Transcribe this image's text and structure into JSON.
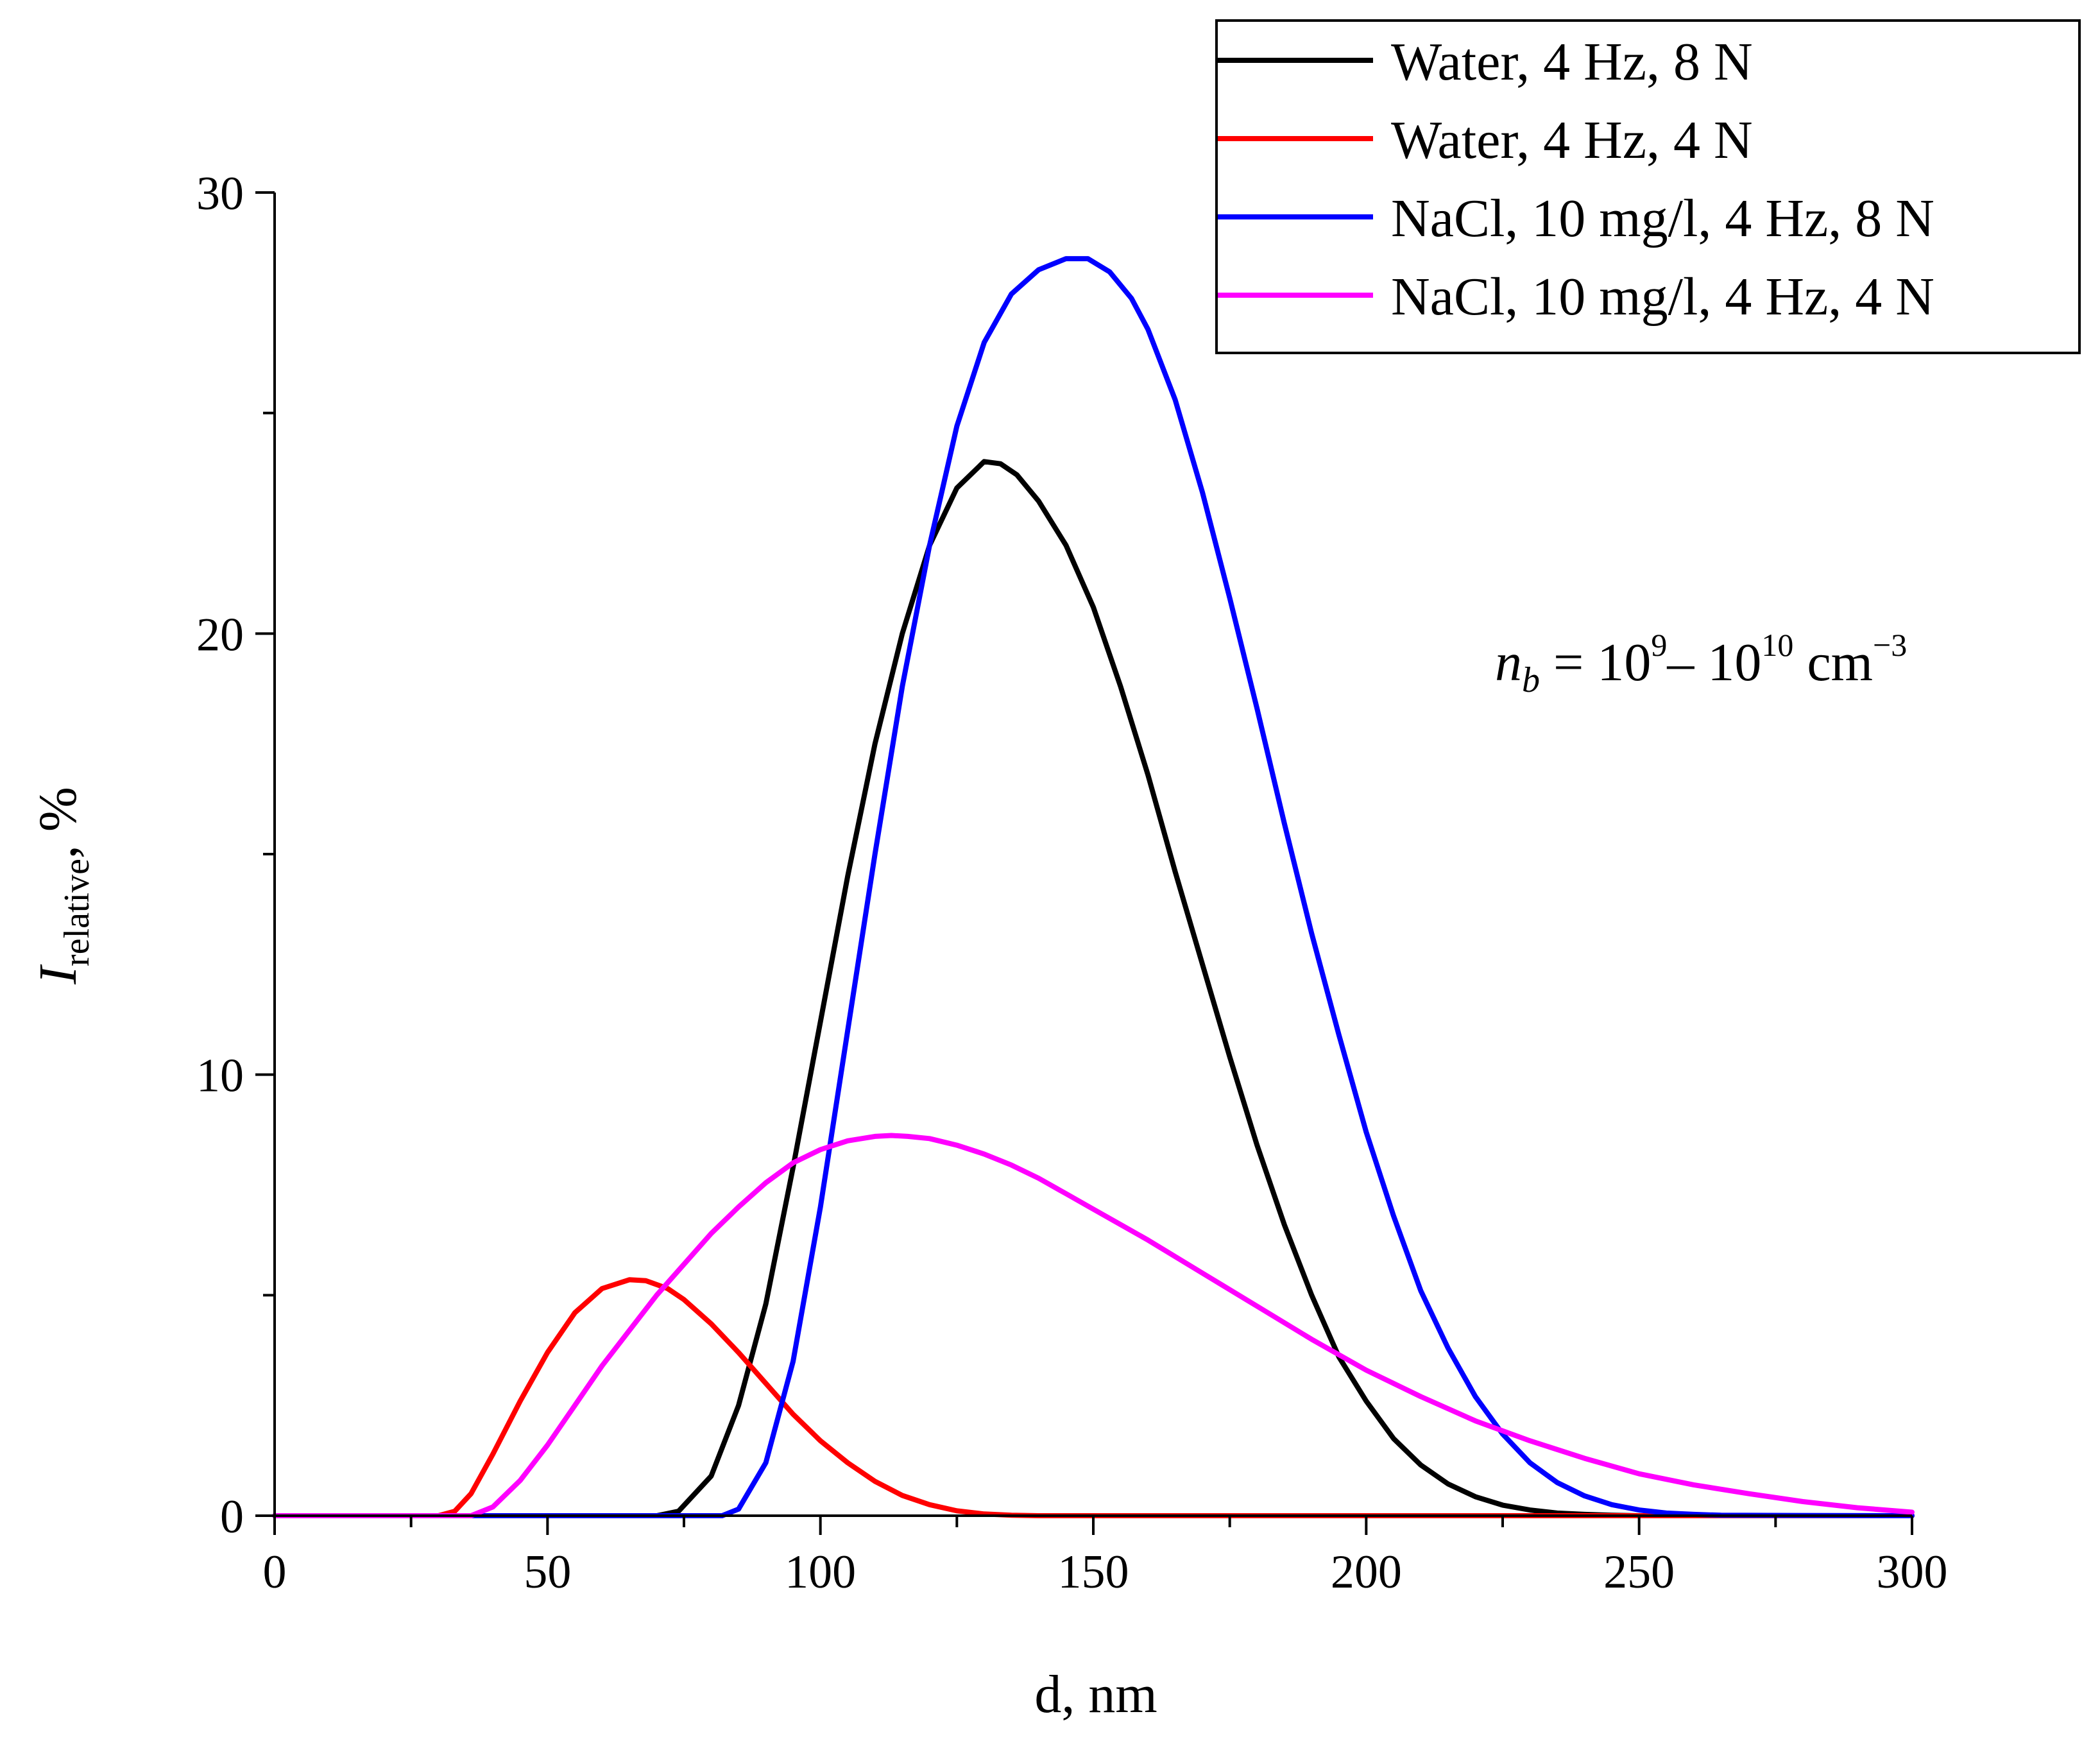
{
  "chart_data": {
    "type": "line",
    "title": "",
    "xlabel": "d, nm",
    "ylabel": {
      "main": "I",
      "sub": "relative",
      "suffix": ", %"
    },
    "xlim": [
      0,
      300
    ],
    "ylim": [
      0,
      30
    ],
    "xticks": [
      0,
      50,
      100,
      150,
      200,
      250,
      300
    ],
    "yticks": [
      0,
      10,
      20,
      30
    ],
    "x_minor_step": 25,
    "y_minor_step": 5,
    "grid": false,
    "legend_position": "top-right",
    "annotation": {
      "var": "n",
      "sub": "b",
      "eq": " = 10",
      "exp1": "9",
      "dash": "– 10",
      "exp2": "10",
      "unit": " cm",
      "exp3": "−3"
    },
    "series": [
      {
        "name": "Water, 4 Hz, 8 N",
        "color": "#000000",
        "x": [
          0,
          70,
          74,
          80,
          85,
          90,
          95,
          100,
          105,
          110,
          115,
          120,
          125,
          130,
          133,
          136,
          140,
          145,
          150,
          155,
          160,
          165,
          170,
          175,
          180,
          185,
          190,
          195,
          200,
          205,
          210,
          215,
          220,
          225,
          230,
          235,
          240,
          245,
          250,
          300
        ],
        "y": [
          0,
          0,
          0.1,
          0.9,
          2.5,
          4.8,
          7.9,
          11.2,
          14.5,
          17.5,
          20.0,
          22.0,
          23.3,
          23.9,
          23.85,
          23.6,
          23.0,
          22.0,
          20.6,
          18.8,
          16.8,
          14.6,
          12.5,
          10.4,
          8.4,
          6.6,
          5.0,
          3.6,
          2.6,
          1.75,
          1.15,
          0.72,
          0.43,
          0.24,
          0.13,
          0.06,
          0.03,
          0.01,
          0,
          0
        ]
      },
      {
        "name": "Water, 4 Hz, 4 N",
        "color": "#ff0000",
        "x": [
          0,
          30,
          33,
          36,
          40,
          45,
          50,
          55,
          60,
          65,
          68,
          72,
          75,
          80,
          85,
          90,
          95,
          100,
          105,
          110,
          115,
          120,
          125,
          130,
          135,
          140,
          300
        ],
        "y": [
          0,
          0,
          0.1,
          0.5,
          1.4,
          2.6,
          3.7,
          4.6,
          5.15,
          5.35,
          5.33,
          5.15,
          4.9,
          4.35,
          3.7,
          3.0,
          2.3,
          1.7,
          1.2,
          0.78,
          0.46,
          0.25,
          0.11,
          0.04,
          0.01,
          0,
          0
        ]
      },
      {
        "name": "NaCl, 10 mg/l, 4 Hz, 8 N",
        "color": "#0000ff",
        "x": [
          0,
          82,
          85,
          90,
          95,
          100,
          105,
          110,
          115,
          120,
          125,
          130,
          135,
          140,
          145,
          149,
          153,
          157,
          160,
          165,
          170,
          175,
          180,
          185,
          190,
          195,
          200,
          205,
          210,
          215,
          220,
          225,
          230,
          235,
          240,
          245,
          250,
          255,
          260,
          265,
          300
        ],
        "y": [
          0,
          0,
          0.15,
          1.2,
          3.5,
          7.0,
          11.0,
          15.0,
          18.8,
          22.0,
          24.7,
          26.6,
          27.7,
          28.25,
          28.5,
          28.5,
          28.2,
          27.6,
          26.9,
          25.3,
          23.2,
          20.8,
          18.3,
          15.7,
          13.2,
          10.9,
          8.7,
          6.8,
          5.1,
          3.8,
          2.7,
          1.85,
          1.2,
          0.75,
          0.45,
          0.25,
          0.13,
          0.06,
          0.03,
          0.01,
          0
        ]
      },
      {
        "name": "NaCl, 10 mg/l, 4 Hz, 4 N",
        "color": "#ff00ff",
        "x": [
          0,
          36,
          40,
          45,
          50,
          55,
          60,
          65,
          70,
          75,
          80,
          85,
          90,
          95,
          100,
          105,
          110,
          113,
          116,
          120,
          125,
          130,
          135,
          140,
          145,
          150,
          160,
          170,
          180,
          190,
          200,
          210,
          220,
          230,
          240,
          250,
          260,
          270,
          280,
          290,
          300
        ],
        "y": [
          0,
          0,
          0.2,
          0.8,
          1.6,
          2.5,
          3.4,
          4.2,
          5.0,
          5.7,
          6.4,
          7.0,
          7.55,
          8.0,
          8.3,
          8.5,
          8.6,
          8.62,
          8.6,
          8.55,
          8.4,
          8.2,
          7.95,
          7.65,
          7.3,
          6.95,
          6.25,
          5.5,
          4.75,
          4.0,
          3.3,
          2.7,
          2.15,
          1.7,
          1.3,
          0.95,
          0.7,
          0.5,
          0.32,
          0.18,
          0.08
        ]
      }
    ]
  }
}
